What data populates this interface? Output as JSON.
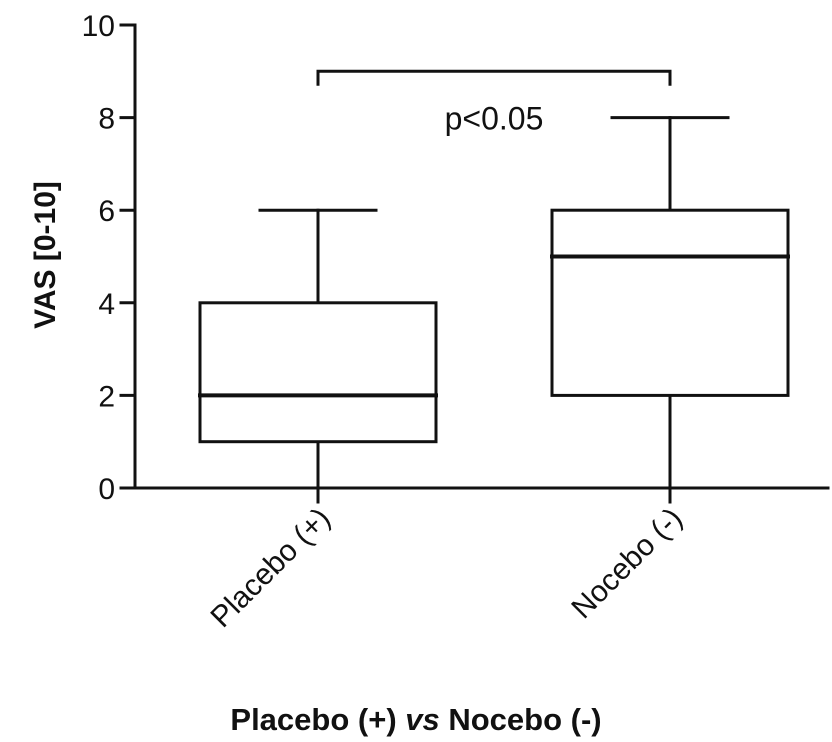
{
  "chart_data": {
    "type": "box",
    "ylabel": "VAS [0-10]",
    "xlabel": {
      "part1": "Placebo (+) ",
      "part2": "vs",
      "part3": " Nocebo (-)"
    },
    "ylim": [
      0,
      10
    ],
    "yticks": [
      0,
      2,
      4,
      6,
      8,
      10
    ],
    "yticks_labels": [
      "0",
      "2",
      "4",
      "6",
      "8",
      "10"
    ],
    "categories": [
      "Placebo (+)",
      "Nocebo (-)"
    ],
    "boxes": [
      {
        "name": "Placebo (+)",
        "min": 0,
        "q1": 1,
        "median": 2,
        "q3": 4,
        "max": 6
      },
      {
        "name": "Nocebo (-)",
        "min": 0,
        "q1": 2,
        "median": 5,
        "q3": 6,
        "max": 8
      }
    ],
    "annotation": {
      "text": "p<0.05",
      "bracket_y": 9
    },
    "grid": false
  }
}
